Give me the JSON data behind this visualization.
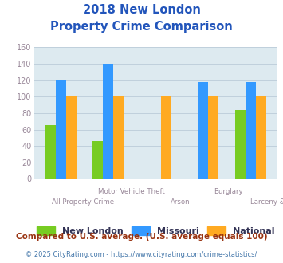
{
  "title_line1": "2018 New London",
  "title_line2": "Property Crime Comparison",
  "categories": [
    "All Property Crime",
    "Motor Vehicle Theft",
    "Arson",
    "Burglary",
    "Larceny & Theft"
  ],
  "new_london": [
    65,
    46,
    null,
    null,
    84
  ],
  "missouri": [
    121,
    140,
    null,
    118,
    118
  ],
  "national": [
    100,
    100,
    100,
    100,
    100
  ],
  "colors": {
    "new_london": "#77cc22",
    "missouri": "#3399ff",
    "national": "#ffaa22"
  },
  "ylim": [
    0,
    160
  ],
  "yticks": [
    0,
    20,
    40,
    60,
    80,
    100,
    120,
    140,
    160
  ],
  "legend_labels": [
    "New London",
    "Missouri",
    "National"
  ],
  "cat_labels_upper": [
    "",
    "Motor Vehicle Theft",
    "",
    "Burglary",
    ""
  ],
  "cat_labels_lower": [
    "All Property Crime",
    "",
    "Arson",
    "",
    "Larceny & Theft"
  ],
  "footnote1": "Compared to U.S. average. (U.S. average equals 100)",
  "footnote2": "© 2025 CityRating.com - https://www.cityrating.com/crime-statistics/",
  "title_color": "#2255bb",
  "plot_bg": "#ddeaf0",
  "grid_color": "#c0d0dc",
  "ytick_color": "#998899",
  "xtick_color": "#998899",
  "legend_text_color": "#333355",
  "footnote1_color": "#993311",
  "footnote2_color": "#4477aa"
}
